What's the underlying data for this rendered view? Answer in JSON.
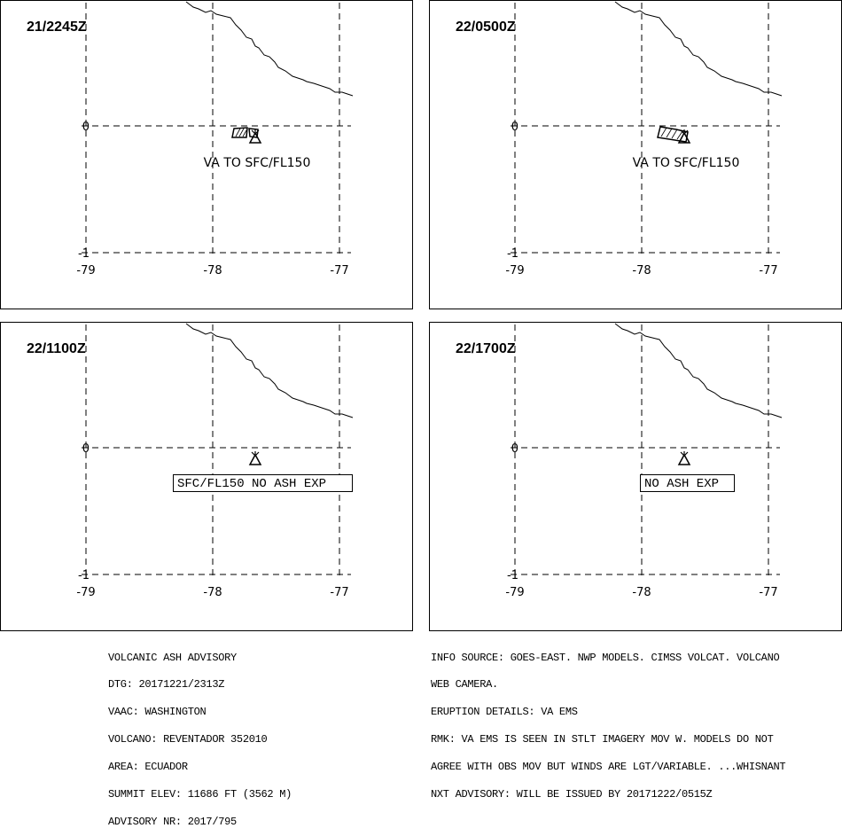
{
  "panels": [
    {
      "time": "21/2245Z",
      "label": "VA TO SFC/FL150",
      "label_boxed": false,
      "ash_polygons": 2
    },
    {
      "time": "22/0500Z",
      "label": "VA TO SFC/FL150",
      "label_boxed": false,
      "ash_polygons": 1
    },
    {
      "time": "22/1100Z",
      "label": "SFC/FL150 NO ASH EXP",
      "label_boxed": true,
      "ash_polygons": 0
    },
    {
      "time": "22/1700Z",
      "label": "NO ASH EXP",
      "label_boxed": true,
      "ash_polygons": 0
    }
  ],
  "grid": {
    "lon_labels": [
      "-79",
      "-78",
      "-77"
    ],
    "lat_labels": [
      "0",
      "-1"
    ]
  },
  "symbols": {
    "volcano": "volcano-icon"
  },
  "advisory_left": [
    "VOLCANIC ASH ADVISORY",
    "DTG: 20171221/2313Z",
    "VAAC: WASHINGTON",
    "VOLCANO: REVENTADOR 352010",
    "AREA: ECUADOR",
    "SUMMIT ELEV: 11686 FT (3562 M)",
    "ADVISORY NR: 2017/795"
  ],
  "advisory_right": [
    "INFO SOURCE: GOES-EAST. NWP MODELS. CIMSS VOLCAT. VOLCANO",
    "WEB CAMERA.",
    "ERUPTION DETAILS: VA EMS",
    "RMK: VA EMS IS SEEN IN STLT IMAGERY MOV W. MODELS DO NOT",
    "AGREE WITH OBS MOV BUT WINDS ARE LGT/VARIABLE. ...WHISNANT",
    "NXT ADVISORY: WILL BE ISSUED BY 20171222/0515Z"
  ]
}
